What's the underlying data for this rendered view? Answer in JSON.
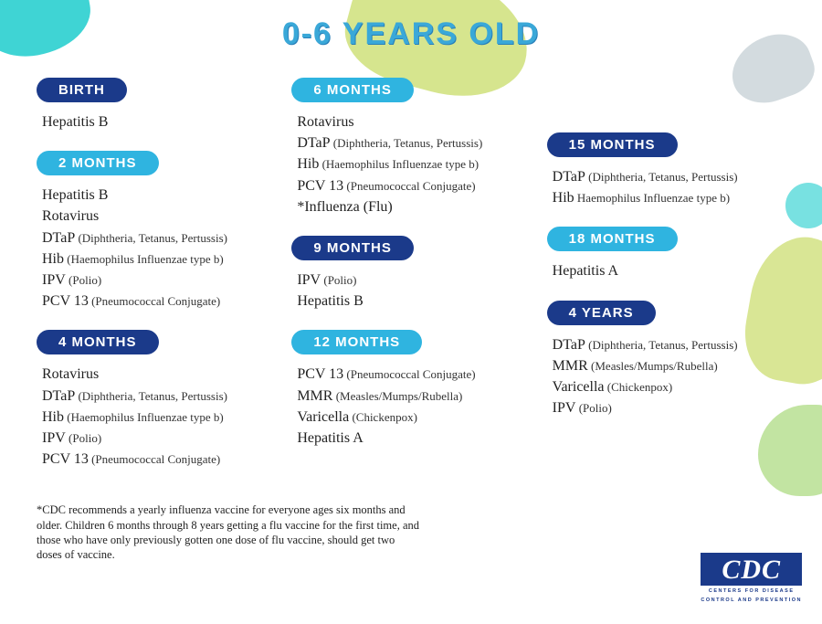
{
  "title": "0-6 YEARS OLD",
  "colors": {
    "pill_dark": "#1b3a8a",
    "pill_light": "#2fb4e0",
    "title_color": "#3aa8d8",
    "bg_teal": "#3fd4d4",
    "bg_green": "#cfe07a",
    "bg_gray": "#b5c3c9"
  },
  "columns": [
    [
      {
        "label": "BIRTH",
        "style": "dark",
        "items": [
          {
            "name": "Hepatitis B"
          }
        ]
      },
      {
        "label": "2 MONTHS",
        "style": "light",
        "items": [
          {
            "name": "Hepatitis B"
          },
          {
            "name": "Rotavirus"
          },
          {
            "name": "DTaP",
            "detail": "(Diphtheria, Tetanus, Pertussis)"
          },
          {
            "name": "Hib",
            "detail": "(Haemophilus Influenzae type b)"
          },
          {
            "name": "IPV",
            "detail": "(Polio)"
          },
          {
            "name": "PCV 13",
            "detail": "(Pneumococcal Conjugate)"
          }
        ]
      },
      {
        "label": "4 MONTHS",
        "style": "dark",
        "items": [
          {
            "name": "Rotavirus"
          },
          {
            "name": "DTaP",
            "detail": "(Diphtheria, Tetanus, Pertussis)"
          },
          {
            "name": "Hib",
            "detail": "(Haemophilus Influenzae type b)"
          },
          {
            "name": "IPV",
            "detail": "(Polio)"
          },
          {
            "name": "PCV 13",
            "detail": "(Pneumococcal Conjugate)"
          }
        ]
      }
    ],
    [
      {
        "label": "6 MONTHS",
        "style": "light",
        "items": [
          {
            "name": "Rotavirus"
          },
          {
            "name": "DTaP",
            "detail": "(Diphtheria, Tetanus, Pertussis)"
          },
          {
            "name": "Hib",
            "detail": "(Haemophilus Influenzae type b)"
          },
          {
            "name": "PCV 13",
            "detail": "(Pneumococcal Conjugate)"
          },
          {
            "name": "*Influenza (Flu)"
          }
        ]
      },
      {
        "label": "9 MONTHS",
        "style": "dark",
        "items": [
          {
            "name": "IPV",
            "detail": "(Polio)"
          },
          {
            "name": "Hepatitis B"
          }
        ]
      },
      {
        "label": "12 MONTHS",
        "style": "light",
        "items": [
          {
            "name": "PCV 13",
            "detail": "(Pneumococcal Conjugate)"
          },
          {
            "name": "MMR",
            "detail": "(Measles/Mumps/Rubella)"
          },
          {
            "name": "Varicella",
            "detail": "(Chickenpox)"
          },
          {
            "name": "Hepatitis A"
          }
        ]
      }
    ],
    [
      {
        "label": "15 MONTHS",
        "style": "dark",
        "items": [
          {
            "name": "DTaP",
            "detail": "(Diphtheria, Tetanus, Pertussis)"
          },
          {
            "name": "Hib",
            "detail": "Haemophilus Influenzae type b)"
          }
        ]
      },
      {
        "label": "18 MONTHS",
        "style": "light",
        "items": [
          {
            "name": "Hepatitis A"
          }
        ]
      },
      {
        "label": "4 YEARS",
        "style": "dark",
        "items": [
          {
            "name": "DTaP",
            "detail": "(Diphtheria, Tetanus, Pertussis)"
          },
          {
            "name": "MMR",
            "detail": "(Measles/Mumps/Rubella)"
          },
          {
            "name": "Varicella",
            "detail": "(Chickenpox)"
          },
          {
            "name": "IPV",
            "detail": "(Polio)"
          }
        ]
      }
    ]
  ],
  "col3_top_spacer": 60,
  "footnote": "*CDC recommends a yearly influenza vaccine for everyone ages six months and older. Children 6 months through 8 years getting a flu vaccine for the first time, and those who have only previously gotten one dose of flu vaccine, should get two doses of vaccine.",
  "cdc": {
    "logo_text": "CDC",
    "sub1": "CENTERS FOR DISEASE",
    "sub2": "CONTROL AND PREVENTION"
  }
}
